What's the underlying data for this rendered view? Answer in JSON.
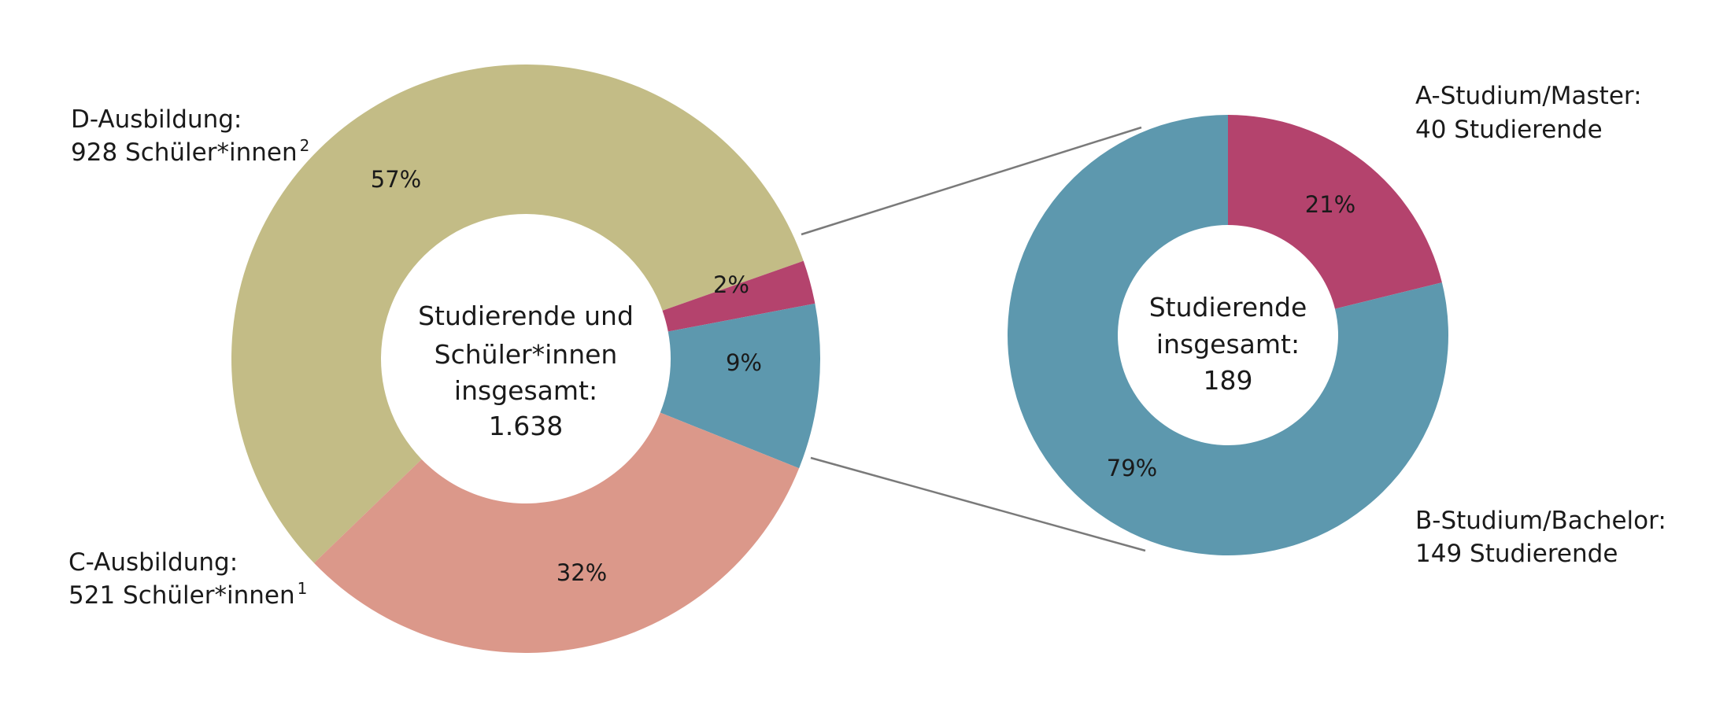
{
  "chart_data": [
    {
      "type": "donut",
      "center_label": [
        "Studierende und",
        "Schüler*innen",
        "insgesamt:",
        "1.638"
      ],
      "slices": [
        {
          "label": "D-Ausbildung",
          "percent_label": "57%",
          "value": 57,
          "color": "#c3bc86"
        },
        {
          "label": "A-Studium/Master",
          "percent_label": "2%",
          "value": 2.4,
          "color": "#b4436d"
        },
        {
          "label": "B-Studium/Bachelor",
          "percent_label": "9%",
          "value": 9.1,
          "color": "#5d98ae"
        },
        {
          "label": "C-Ausbildung",
          "percent_label": "32%",
          "value": 31.8,
          "color": "#db988a"
        }
      ],
      "annotations": [
        {
          "title": "D-Ausbildung:",
          "text": "928 Schüler*innen",
          "sup": "2"
        },
        {
          "title": "C-Ausbildung:",
          "text": "521 Schüler*innen",
          "sup": "1"
        }
      ]
    },
    {
      "type": "donut",
      "center_label": [
        "Studierende",
        "insgesamt:",
        "189"
      ],
      "slices": [
        {
          "label": "A-Studium/Master",
          "percent_label": "21%",
          "value": 40,
          "color": "#b4436d"
        },
        {
          "label": "B-Studium/Bachelor",
          "percent_label": "79%",
          "value": 149,
          "color": "#5d98ae"
        }
      ],
      "annotations": [
        {
          "title": "A-Studium/Master:",
          "text": "40 Studierende"
        },
        {
          "title": "B-Studium/Bachelor:",
          "text": "149 Studierende"
        }
      ]
    }
  ]
}
